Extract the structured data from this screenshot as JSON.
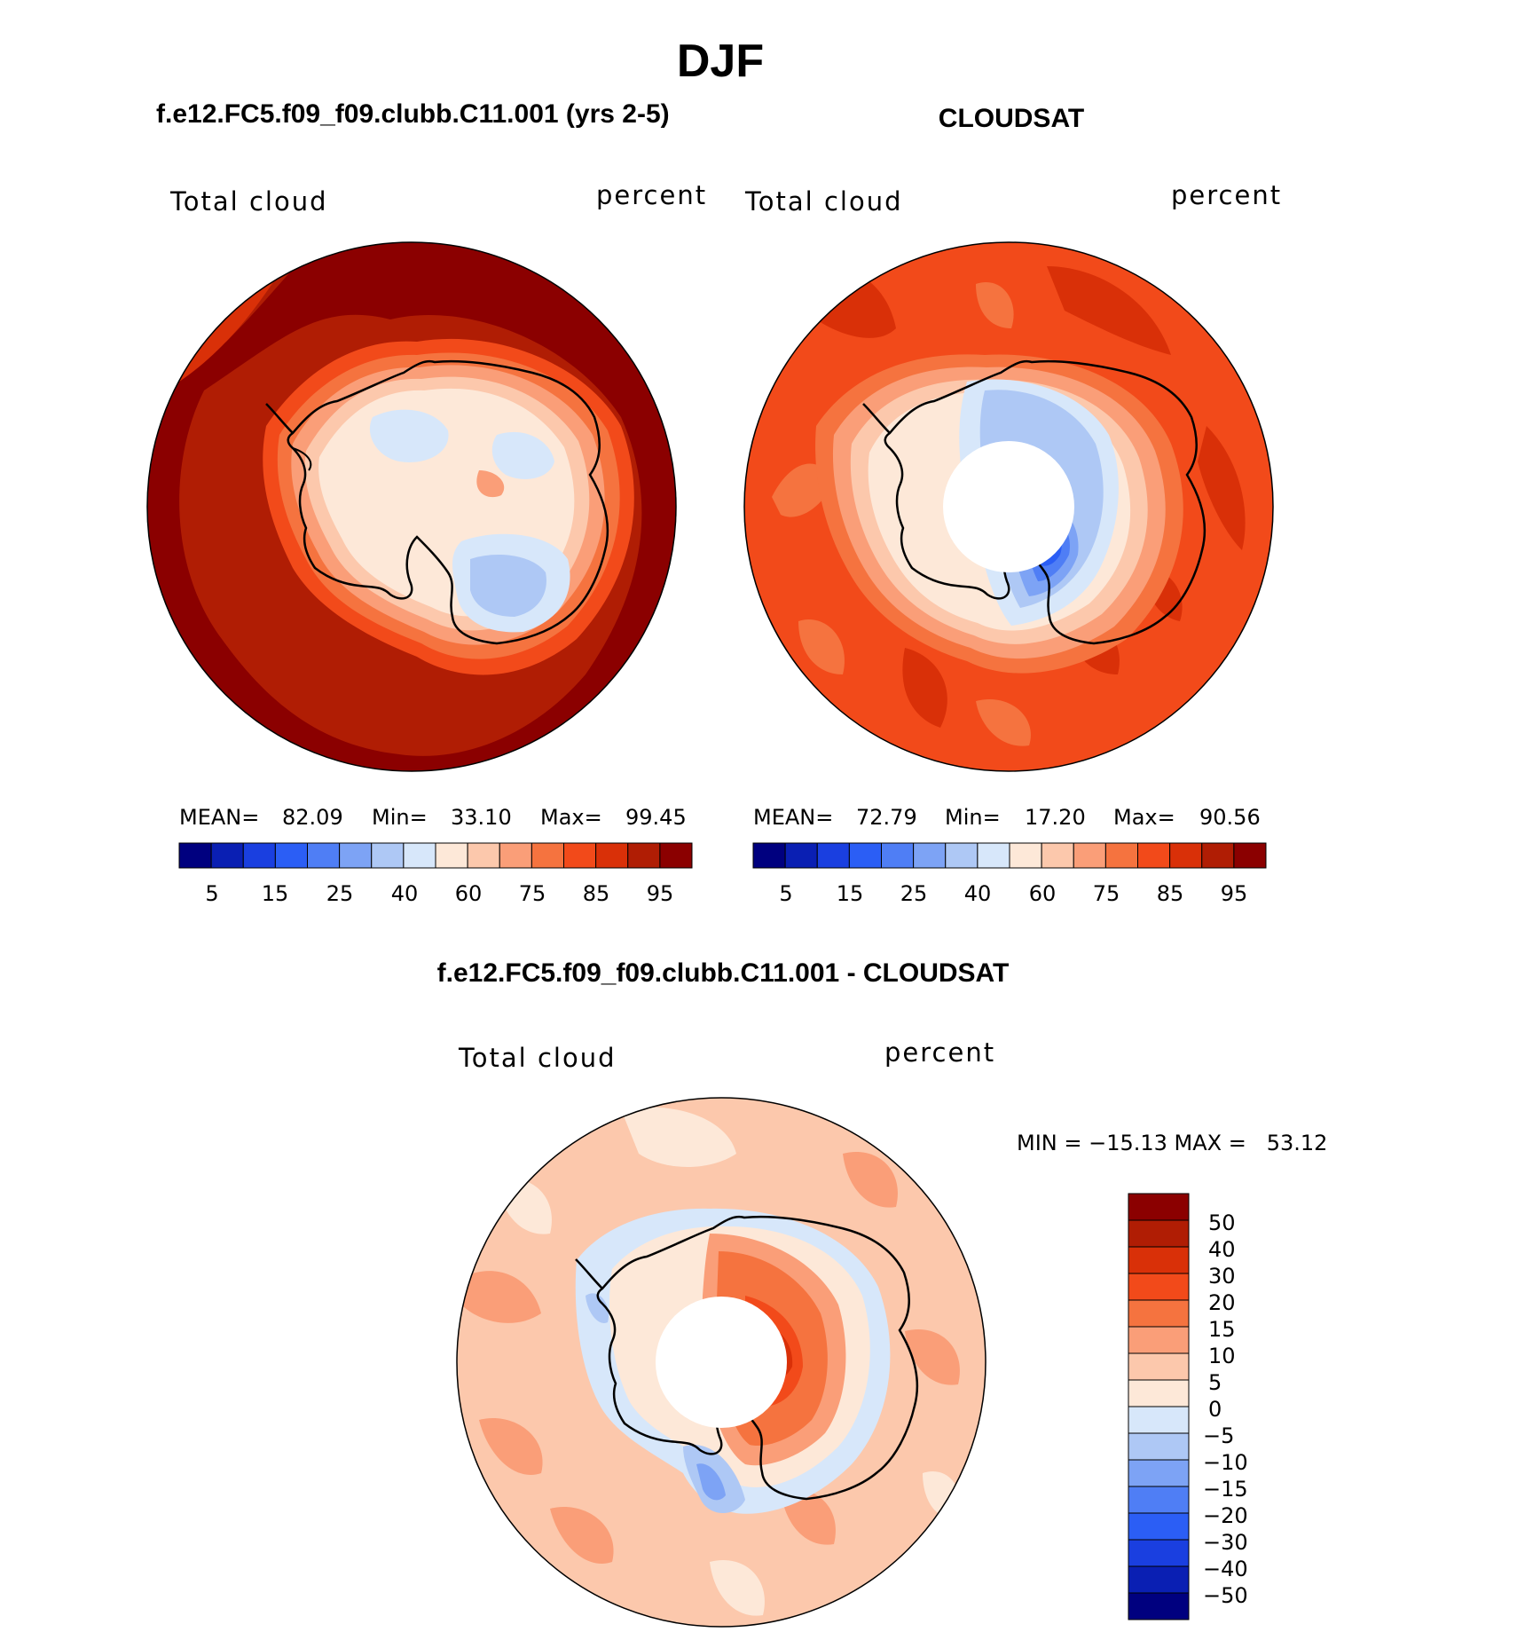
{
  "title": "DJF",
  "panels": [
    {
      "heading": "f.e12.FC5.f09_f09.clubb.C11.001 (yrs 2-5)",
      "left_label": "Total cloud",
      "right_label": "percent",
      "stats": {
        "mean_label": "MEAN=",
        "mean": "82.09",
        "min_label": "Min=",
        "min": "33.10",
        "max_label": "Max=",
        "max": "99.45"
      },
      "colorbar_ticks": [
        "5",
        "15",
        "25",
        "40",
        "60",
        "75",
        "85",
        "95"
      ]
    },
    {
      "heading": "CLOUDSAT",
      "left_label": "Total cloud",
      "right_label": "percent",
      "stats": {
        "mean_label": "MEAN=",
        "mean": "72.79",
        "min_label": "Min=",
        "min": "17.20",
        "max_label": "Max=",
        "max": "90.56"
      },
      "colorbar_ticks": [
        "5",
        "15",
        "25",
        "40",
        "60",
        "75",
        "85",
        "95"
      ]
    }
  ],
  "diff": {
    "heading": "f.e12.FC5.f09_f09.clubb.C11.001 - CLOUDSAT",
    "left_label": "Total cloud",
    "right_label": "percent",
    "minmax": "MIN = −15.13 MAX =   53.12",
    "colorbar_ticks": [
      "50",
      "40",
      "30",
      "20",
      "15",
      "10",
      "5",
      "0",
      "−5",
      "−10",
      "−15",
      "−20",
      "−30",
      "−40",
      "−50"
    ]
  },
  "palette_abs": [
    "#00007f",
    "#0a1fb3",
    "#1a3fe0",
    "#2b5ef5",
    "#4f7ef5",
    "#7da3f5",
    "#aec8f5",
    "#d7e7fa",
    "#fde8d8",
    "#fcc8ac",
    "#fa9e78",
    "#f5733f",
    "#f24a1a",
    "#d93008",
    "#b01d04",
    "#8b0000"
  ],
  "palette_diff": [
    "#8b0000",
    "#b01d04",
    "#d93008",
    "#f24a1a",
    "#f5733f",
    "#fa9e78",
    "#fcc8ac",
    "#fde8d8",
    "#d7e7fa",
    "#aec8f5",
    "#7da3f5",
    "#4f7ef5",
    "#2b5ef5",
    "#1a3fe0",
    "#0a1fb3",
    "#00007f"
  ]
}
